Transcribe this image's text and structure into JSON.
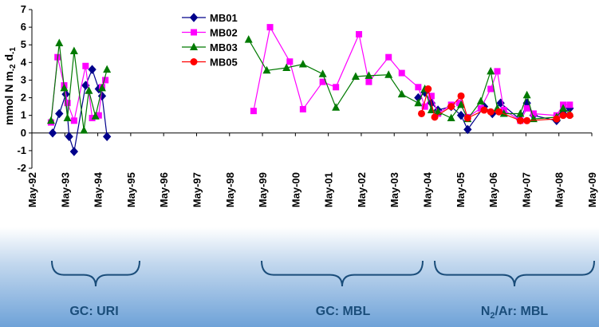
{
  "chart_data": {
    "type": "line",
    "ylabel_main": "mmol N m",
    "ylabel_sub1": "-2",
    "ylabel_mid": " d",
    "ylabel_sub2": "-1",
    "ylim": [
      -2,
      7
    ],
    "yticks": [
      "-2",
      "-1",
      "0",
      "1",
      "2",
      "3",
      "4",
      "5",
      "6",
      "7"
    ],
    "xlim": [
      1992.37,
      2009.37
    ],
    "xticks": [
      "May-92",
      "May-93",
      "May-94",
      "May-95",
      "May-96",
      "May-97",
      "May-98",
      "May-99",
      "May-00",
      "May-01",
      "May-02",
      "May-03",
      "May-04",
      "May-05",
      "May-06",
      "May-07",
      "May-08",
      "May-09"
    ],
    "grid": false,
    "legend_position": "top-center",
    "series": [
      {
        "name": "MB01",
        "color": "#00008b",
        "marker": "diamond",
        "points": [
          [
            1993.0,
            0.0
          ],
          [
            1993.2,
            1.1
          ],
          [
            1993.4,
            2.2
          ],
          [
            1993.5,
            -0.2
          ],
          [
            1993.65,
            -1.05
          ],
          [
            1994.0,
            2.7
          ],
          [
            1994.2,
            3.6
          ],
          [
            1994.4,
            2.5
          ],
          [
            1994.5,
            2.1
          ],
          [
            1994.65,
            -0.2
          ],
          [
            2004.1,
            2.0
          ],
          [
            2004.3,
            2.3
          ],
          [
            2004.5,
            1.7
          ],
          [
            2004.7,
            1.3
          ],
          [
            2005.1,
            1.5
          ],
          [
            2005.4,
            1.0
          ],
          [
            2005.6,
            0.2
          ],
          [
            2006.1,
            1.5
          ],
          [
            2006.35,
            1.1
          ],
          [
            2006.6,
            1.7
          ],
          [
            2007.2,
            0.75
          ],
          [
            2007.4,
            1.7
          ],
          [
            2007.6,
            1.0
          ],
          [
            2008.3,
            0.7
          ],
          [
            2008.5,
            1.1
          ],
          [
            2008.7,
            1.4
          ]
        ]
      },
      {
        "name": "MB02",
        "color": "#ff00ff",
        "marker": "square",
        "points": [
          [
            1992.95,
            0.6
          ],
          [
            1993.15,
            4.3
          ],
          [
            1993.35,
            2.7
          ],
          [
            1993.45,
            1.7
          ],
          [
            1993.65,
            0.7
          ],
          [
            1994.0,
            3.8
          ],
          [
            1994.2,
            0.85
          ],
          [
            1994.4,
            1.0
          ],
          [
            1994.5,
            2.6
          ],
          [
            1994.6,
            3.0
          ],
          [
            1999.1,
            1.25
          ],
          [
            1999.6,
            6.0
          ],
          [
            2000.2,
            4.05
          ],
          [
            2000.6,
            1.35
          ],
          [
            2001.2,
            2.9
          ],
          [
            2001.6,
            2.6
          ],
          [
            2002.3,
            5.6
          ],
          [
            2002.6,
            2.9
          ],
          [
            2003.2,
            4.3
          ],
          [
            2003.6,
            3.4
          ],
          [
            2004.1,
            2.6
          ],
          [
            2004.3,
            1.5
          ],
          [
            2004.5,
            2.1
          ],
          [
            2004.7,
            1.1
          ],
          [
            2005.1,
            1.6
          ],
          [
            2005.35,
            1.7
          ],
          [
            2005.6,
            0.9
          ],
          [
            2006.0,
            1.4
          ],
          [
            2006.3,
            2.5
          ],
          [
            2006.5,
            3.5
          ],
          [
            2006.7,
            1.3
          ],
          [
            2007.2,
            0.7
          ],
          [
            2007.4,
            1.4
          ],
          [
            2007.6,
            1.1
          ],
          [
            2008.3,
            1.0
          ],
          [
            2008.5,
            1.6
          ],
          [
            2008.7,
            1.6
          ]
        ]
      },
      {
        "name": "MB03",
        "color": "#007a00",
        "marker": "triangle",
        "points": [
          [
            1992.95,
            0.7
          ],
          [
            1993.2,
            5.1
          ],
          [
            1993.35,
            2.55
          ],
          [
            1993.45,
            0.85
          ],
          [
            1993.65,
            4.65
          ],
          [
            1993.95,
            0.15
          ],
          [
            1994.1,
            2.4
          ],
          [
            1994.3,
            0.95
          ],
          [
            1994.5,
            2.55
          ],
          [
            1994.65,
            3.6
          ],
          [
            1998.95,
            5.3
          ],
          [
            1999.5,
            3.55
          ],
          [
            2000.1,
            3.7
          ],
          [
            2000.6,
            3.9
          ],
          [
            2001.2,
            3.35
          ],
          [
            2001.6,
            1.45
          ],
          [
            2002.2,
            3.2
          ],
          [
            2002.6,
            3.25
          ],
          [
            2003.2,
            3.3
          ],
          [
            2003.6,
            2.2
          ],
          [
            2004.1,
            1.7
          ],
          [
            2004.3,
            2.5
          ],
          [
            2004.5,
            1.3
          ],
          [
            2004.7,
            1.2
          ],
          [
            2005.1,
            0.85
          ],
          [
            2005.4,
            1.6
          ],
          [
            2005.6,
            0.8
          ],
          [
            2006.0,
            1.8
          ],
          [
            2006.3,
            3.5
          ],
          [
            2006.5,
            1.4
          ],
          [
            2006.7,
            1.1
          ],
          [
            2007.2,
            1.1
          ],
          [
            2007.4,
            2.15
          ],
          [
            2007.6,
            0.8
          ],
          [
            2008.3,
            0.9
          ],
          [
            2008.5,
            1.4
          ],
          [
            2008.7,
            1.1
          ]
        ]
      },
      {
        "name": "MB05",
        "color": "#ff0000",
        "marker": "circle",
        "points": [
          [
            2004.2,
            1.1
          ],
          [
            2004.4,
            2.5
          ],
          [
            2004.6,
            0.9
          ],
          [
            2005.1,
            1.5
          ],
          [
            2005.4,
            2.1
          ],
          [
            2005.6,
            0.85
          ],
          [
            2006.1,
            1.3
          ],
          [
            2006.3,
            1.2
          ],
          [
            2006.55,
            1.2
          ],
          [
            2007.2,
            0.7
          ],
          [
            2007.4,
            0.7
          ],
          [
            2008.3,
            0.8
          ],
          [
            2008.5,
            1.0
          ],
          [
            2008.7,
            1.0
          ]
        ]
      }
    ]
  },
  "groups": [
    {
      "label": "GC: URI",
      "label_sub": "",
      "label_rest": ""
    },
    {
      "label": "GC: MBL",
      "label_sub": "",
      "label_rest": ""
    },
    {
      "label": "N",
      "label_sub": "2",
      "label_rest": "/Ar: MBL"
    }
  ]
}
